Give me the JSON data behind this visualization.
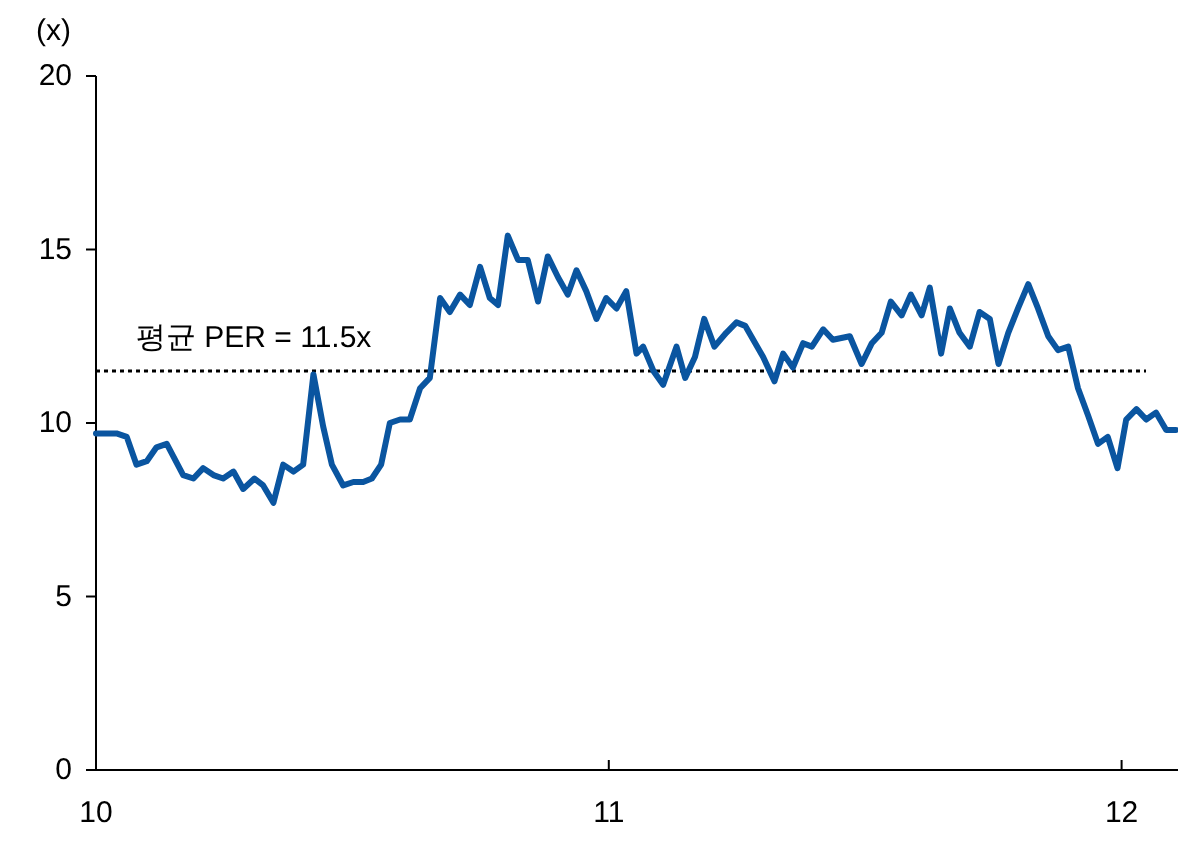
{
  "chart_data": {
    "type": "line",
    "ylabel": "(x)",
    "xlim": [
      10,
      12.11
    ],
    "xticks": [
      10,
      11,
      12
    ],
    "ylim": [
      0,
      20
    ],
    "yticks": [
      0,
      5,
      10,
      15,
      20
    ],
    "grid": false,
    "marker": "none",
    "line_style": "solid",
    "ref_lines": [
      {
        "axis": "y",
        "value": 11.5,
        "label": "평균 PER = 11.5x",
        "color": "#000000",
        "line_style": "dotted"
      }
    ],
    "series": [
      {
        "color": "#0a55a0",
        "x": [
          10.0,
          10.04,
          10.06,
          10.079,
          10.099,
          10.118,
          10.138,
          10.17,
          10.19,
          10.209,
          10.229,
          10.248,
          10.268,
          10.287,
          10.309,
          10.326,
          10.346,
          10.365,
          10.385,
          10.404,
          10.424,
          10.443,
          10.46,
          10.482,
          10.502,
          10.521,
          10.538,
          10.556,
          10.573,
          10.593,
          10.612,
          10.632,
          10.651,
          10.671,
          10.69,
          10.71,
          10.729,
          10.749,
          10.768,
          10.784,
          10.803,
          10.823,
          10.842,
          10.862,
          10.881,
          10.901,
          10.92,
          10.937,
          10.956,
          10.976,
          10.995,
          11.015,
          11.034,
          11.054,
          11.067,
          11.087,
          11.106,
          11.132,
          11.149,
          11.168,
          11.186,
          11.206,
          11.229,
          11.249,
          11.266,
          11.301,
          11.323,
          11.34,
          11.359,
          11.379,
          11.396,
          11.418,
          11.437,
          11.47,
          11.493,
          11.513,
          11.532,
          11.55,
          11.571,
          11.589,
          11.61,
          11.626,
          11.648,
          11.665,
          11.684,
          11.704,
          11.723,
          11.743,
          11.76,
          11.779,
          11.798,
          11.818,
          11.837,
          11.857,
          11.876,
          11.896,
          11.915,
          11.935,
          11.954,
          11.973,
          11.992,
          12.009,
          12.029,
          12.048,
          12.067,
          12.087,
          12.106
        ],
        "values": [
          9.7,
          9.7,
          9.6,
          8.8,
          8.9,
          9.3,
          9.4,
          8.5,
          8.4,
          8.7,
          8.5,
          8.4,
          8.6,
          8.1,
          8.4,
          8.2,
          7.7,
          8.8,
          8.6,
          8.8,
          11.4,
          9.9,
          8.8,
          8.2,
          8.3,
          8.3,
          8.4,
          8.8,
          10.0,
          10.1,
          10.1,
          11.0,
          11.3,
          13.6,
          13.2,
          13.7,
          13.4,
          14.5,
          13.6,
          13.4,
          15.4,
          14.7,
          14.7,
          13.5,
          14.8,
          14.2,
          13.7,
          14.4,
          13.8,
          13.0,
          13.6,
          13.3,
          13.8,
          12.0,
          12.2,
          11.5,
          11.1,
          12.2,
          11.3,
          11.9,
          13.0,
          12.2,
          12.6,
          12.9,
          12.8,
          11.9,
          11.2,
          12.0,
          11.6,
          12.3,
          12.2,
          12.7,
          12.4,
          12.5,
          11.7,
          12.3,
          12.6,
          13.5,
          13.1,
          13.7,
          13.1,
          13.9,
          12.0,
          13.3,
          12.6,
          12.2,
          13.2,
          13.0,
          11.7,
          12.6,
          13.3,
          14.0,
          13.3,
          12.5,
          12.1,
          12.2,
          11.0,
          10.2,
          9.4,
          9.6,
          8.7,
          10.1,
          10.4,
          10.1,
          10.3,
          9.8,
          9.8
        ]
      }
    ]
  }
}
